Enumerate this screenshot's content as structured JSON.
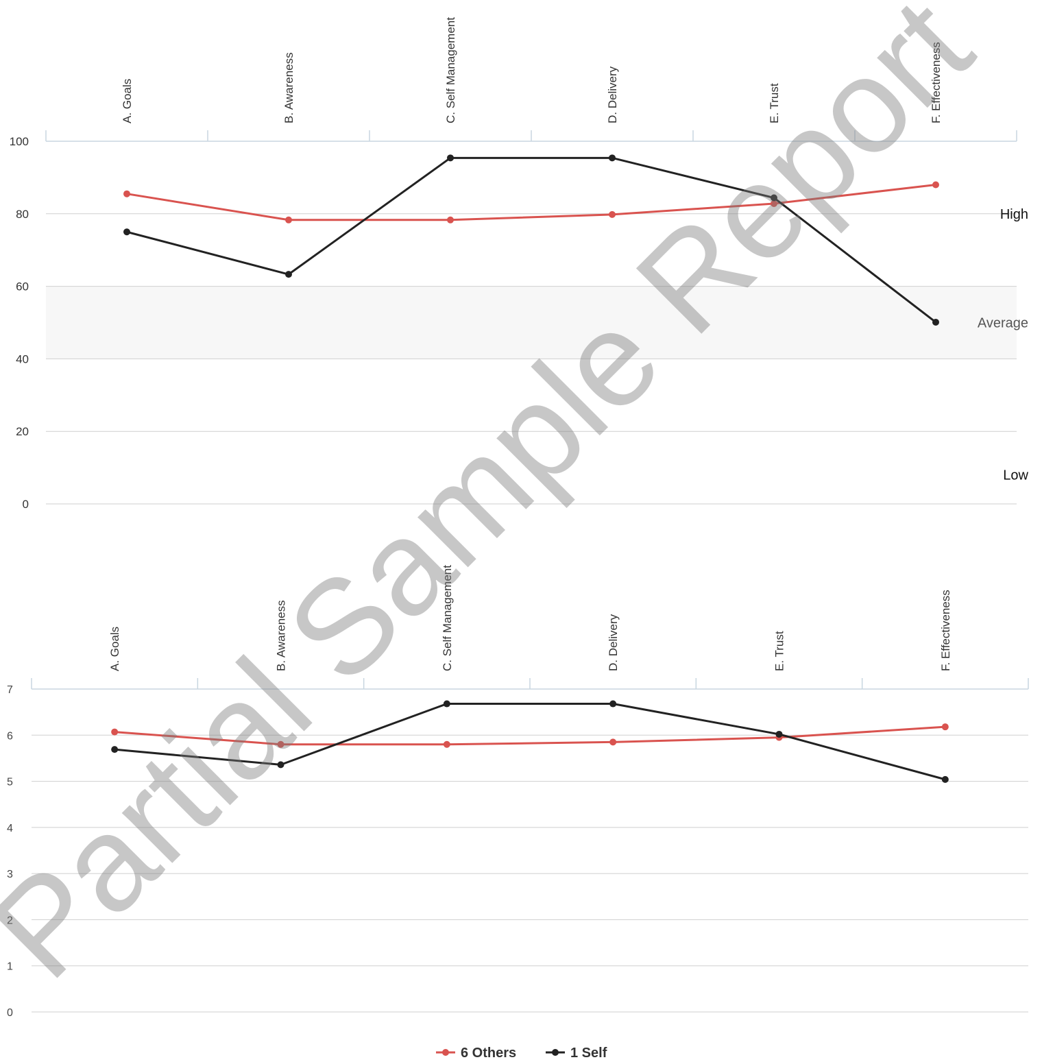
{
  "chart_data": [
    {
      "type": "line",
      "categories": [
        "A. Goals",
        "B. Awareness",
        "C. Self Management",
        "D. Delivery",
        "E. Trust",
        "F. Effectiveness"
      ],
      "series": [
        {
          "name": "6 Others",
          "color": "#d9534f",
          "values": [
            85.5,
            78.3,
            78.3,
            79.8,
            82.8,
            88.0
          ]
        },
        {
          "name": "1 Self",
          "color": "#222222",
          "values": [
            75.0,
            63.3,
            95.4,
            95.4,
            84.4,
            50.1
          ]
        }
      ],
      "ylim": [
        0,
        100
      ],
      "yticks": [
        "0",
        "20",
        "40",
        "60",
        "80",
        "100"
      ],
      "band": [
        40,
        60
      ],
      "band_labels": {
        "high": "High",
        "average": "Average",
        "low": "Low"
      },
      "grid": true
    },
    {
      "type": "line",
      "categories": [
        "A. Goals",
        "B. Awareness",
        "C. Self Management",
        "D. Delivery",
        "E. Trust",
        "F. Effectiveness"
      ],
      "series": [
        {
          "name": "6 Others",
          "color": "#d9534f",
          "values": [
            6.07,
            5.8,
            5.8,
            5.85,
            5.95,
            6.18
          ]
        },
        {
          "name": "1 Self",
          "color": "#222222",
          "values": [
            5.69,
            5.36,
            6.68,
            6.68,
            6.02,
            5.04
          ]
        }
      ],
      "ylim": [
        0,
        7
      ],
      "yticks": [
        "0",
        "1",
        "2",
        "3",
        "4",
        "5",
        "6",
        "7"
      ],
      "grid": true
    }
  ],
  "legend": [
    {
      "label": "6 Others",
      "color": "#d9534f"
    },
    {
      "label": "1 Self",
      "color": "#222222"
    }
  ],
  "watermark": "Partial Sample Report"
}
